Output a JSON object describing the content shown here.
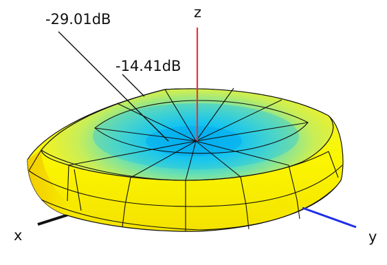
{
  "annotations": {
    "outer_level": "-29.01dB",
    "inner_level": "-14.41dB"
  },
  "axes": {
    "x_label": "x",
    "y_label": "y",
    "z_label": "z",
    "x_color": "#111111",
    "y_color": "#1f2ee8",
    "z_color": "#e8343c"
  },
  "colors": {
    "low": "#00b4f0",
    "mid": "#5ee0b8",
    "high": "#fbf200",
    "mesh": "#111111"
  }
}
